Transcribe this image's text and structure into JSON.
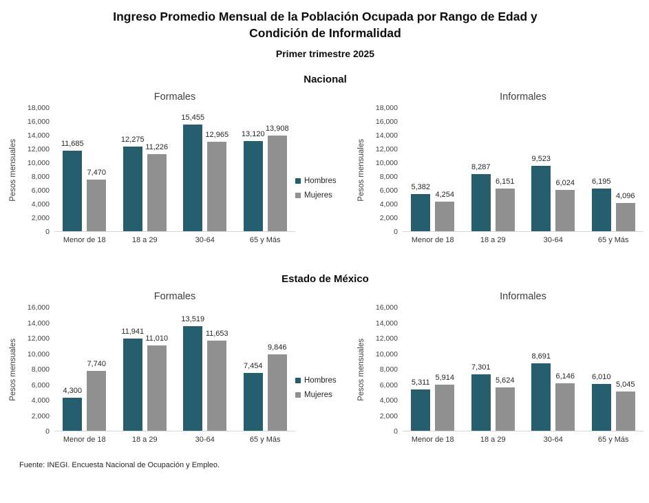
{
  "header": {
    "title_lines": [
      "Ingreso Promedio Mensual de la Población Ocupada por Rango de Edad y",
      "Condición de Informalidad"
    ],
    "subtitle": "Primer trimestre 2025"
  },
  "sections": [
    {
      "heading": "Nacional"
    },
    {
      "heading": "Estado de México"
    }
  ],
  "legend": {
    "items": [
      {
        "label": "Hombres",
        "color": "#275E6D"
      },
      {
        "label": "Mujeres",
        "color": "#919191"
      }
    ]
  },
  "colors": {
    "hombres": "#275E6D",
    "mujeres": "#919191",
    "axis_line": "#d6d6d6"
  },
  "footer": {
    "source": "Fuente: INEGI. Encuesta Nacional de Ocupación y Empleo."
  },
  "chart_data": [
    {
      "type": "bar",
      "section": "Nacional",
      "title": "Formales",
      "ylabel": "Pesos mensuales",
      "xlabel": "",
      "ylim": [
        0,
        18000
      ],
      "ytick_step": 2000,
      "grid": false,
      "legend_position": "between-charts",
      "categories": [
        "Menor de 18",
        "18 a 29",
        "30-64",
        "65 y Más"
      ],
      "series": [
        {
          "name": "Hombres",
          "color": "#275E6D",
          "values": [
            11685,
            12275,
            15455,
            13120
          ]
        },
        {
          "name": "Mujeres",
          "color": "#919191",
          "values": [
            7470,
            11226,
            12965,
            13908
          ]
        }
      ]
    },
    {
      "type": "bar",
      "section": "Nacional",
      "title": "Informales",
      "ylabel": "Pesos mensuales",
      "xlabel": "",
      "ylim": [
        0,
        18000
      ],
      "ytick_step": 2000,
      "grid": false,
      "legend_position": "between-charts",
      "categories": [
        "Menor de 18",
        "18 a 29",
        "30-64",
        "65 y Más"
      ],
      "series": [
        {
          "name": "Hombres",
          "color": "#275E6D",
          "values": [
            5382,
            8287,
            9523,
            6195
          ]
        },
        {
          "name": "Mujeres",
          "color": "#919191",
          "values": [
            4254,
            6151,
            6024,
            4096
          ]
        }
      ]
    },
    {
      "type": "bar",
      "section": "Estado de México",
      "title": "Formales",
      "ylabel": "Pesos mensuales",
      "xlabel": "",
      "ylim": [
        0,
        16000
      ],
      "ytick_step": 2000,
      "grid": false,
      "legend_position": "between-charts",
      "categories": [
        "Menor de 18",
        "18 a 29",
        "30-64",
        "65 y Más"
      ],
      "series": [
        {
          "name": "Hombres",
          "color": "#275E6D",
          "values": [
            4300,
            11941,
            13519,
            7454
          ]
        },
        {
          "name": "Mujeres",
          "color": "#919191",
          "values": [
            7740,
            11010,
            11653,
            9846
          ]
        }
      ]
    },
    {
      "type": "bar",
      "section": "Estado de México",
      "title": "Informales",
      "ylabel": "Pesos mensuales",
      "xlabel": "",
      "ylim": [
        0,
        16000
      ],
      "ytick_step": 2000,
      "grid": false,
      "legend_position": "between-charts",
      "categories": [
        "Menor de 18",
        "18 a 29",
        "30-64",
        "65 y Más"
      ],
      "series": [
        {
          "name": "Hombres",
          "color": "#275E6D",
          "values": [
            5311,
            7301,
            8691,
            6010
          ]
        },
        {
          "name": "Mujeres",
          "color": "#919191",
          "values": [
            5914,
            5624,
            6146,
            5045
          ]
        }
      ]
    }
  ]
}
